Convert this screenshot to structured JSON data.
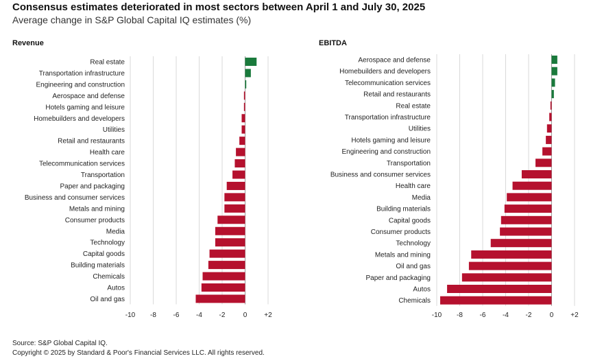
{
  "header": {
    "title": "Consensus estimates deteriorated in most sectors between April 1 and July 30, 2025",
    "subtitle": "Average change in S&P Global Capital IQ estimates (%)"
  },
  "footer": {
    "source": "Source: S&P Global Capital IQ.",
    "copyright": "Copyright © 2025 by Standard & Poor's Financial Services LLC. All rights reserved."
  },
  "colors": {
    "positive": "#1a7a3c",
    "negative": "#b5112e",
    "grid": "#d9d9d9"
  },
  "chart_data": [
    {
      "type": "bar",
      "orientation": "horizontal",
      "title": "Revenue",
      "xlim": [
        -10,
        2
      ],
      "ticks": [
        "-10",
        "-8",
        "-6",
        "-4",
        "-2",
        "0",
        "+2"
      ],
      "grid": true,
      "categories": [
        "Real estate",
        "Transportation infrastructure",
        "Engineering and construction",
        "Aerospace and defense",
        "Hotels gaming and leisure",
        "Homebuilders and developers",
        "Utilities",
        "Retail and restaurants",
        "Health care",
        "Telecommunication services",
        "Transportation",
        "Paper and packaging",
        "Business and consumer services",
        "Metals and mining",
        "Consumer products",
        "Media",
        "Technology",
        "Capital goods",
        "Building materials",
        "Chemicals",
        "Autos",
        "Oil and gas"
      ],
      "values": [
        1.0,
        0.5,
        0.1,
        -0.1,
        -0.1,
        -0.3,
        -0.3,
        -0.5,
        -0.8,
        -0.9,
        -1.1,
        -1.6,
        -1.8,
        -1.8,
        -2.4,
        -2.6,
        -2.6,
        -3.1,
        -3.2,
        -3.7,
        -3.8,
        -4.3
      ]
    },
    {
      "type": "bar",
      "orientation": "horizontal",
      "title": "EBITDA",
      "xlim": [
        -10,
        2
      ],
      "ticks": [
        "-10",
        "-8",
        "-6",
        "-4",
        "-2",
        "0",
        "+2"
      ],
      "grid": true,
      "categories": [
        "Aerospace and defense",
        "Homebuilders and developers",
        "Telecommunication services",
        "Retail and restaurants",
        "Real estate",
        "Transportation infrastructure",
        "Utilities",
        "Hotels gaming and leisure",
        "Engineering and construction",
        "Transportation",
        "Business and consumer services",
        "Health care",
        "Media",
        "Building materials",
        "Capital goods",
        "Consumer products",
        "Technology",
        "Metals and mining",
        "Oil and gas",
        "Paper and packaging",
        "Autos",
        "Chemicals"
      ],
      "values": [
        0.5,
        0.5,
        0.3,
        0.2,
        -0.1,
        -0.2,
        -0.4,
        -0.5,
        -0.8,
        -1.4,
        -2.6,
        -3.4,
        -3.9,
        -4.1,
        -4.4,
        -4.5,
        -5.3,
        -7.0,
        -7.2,
        -7.8,
        -9.1,
        -9.7
      ]
    }
  ]
}
